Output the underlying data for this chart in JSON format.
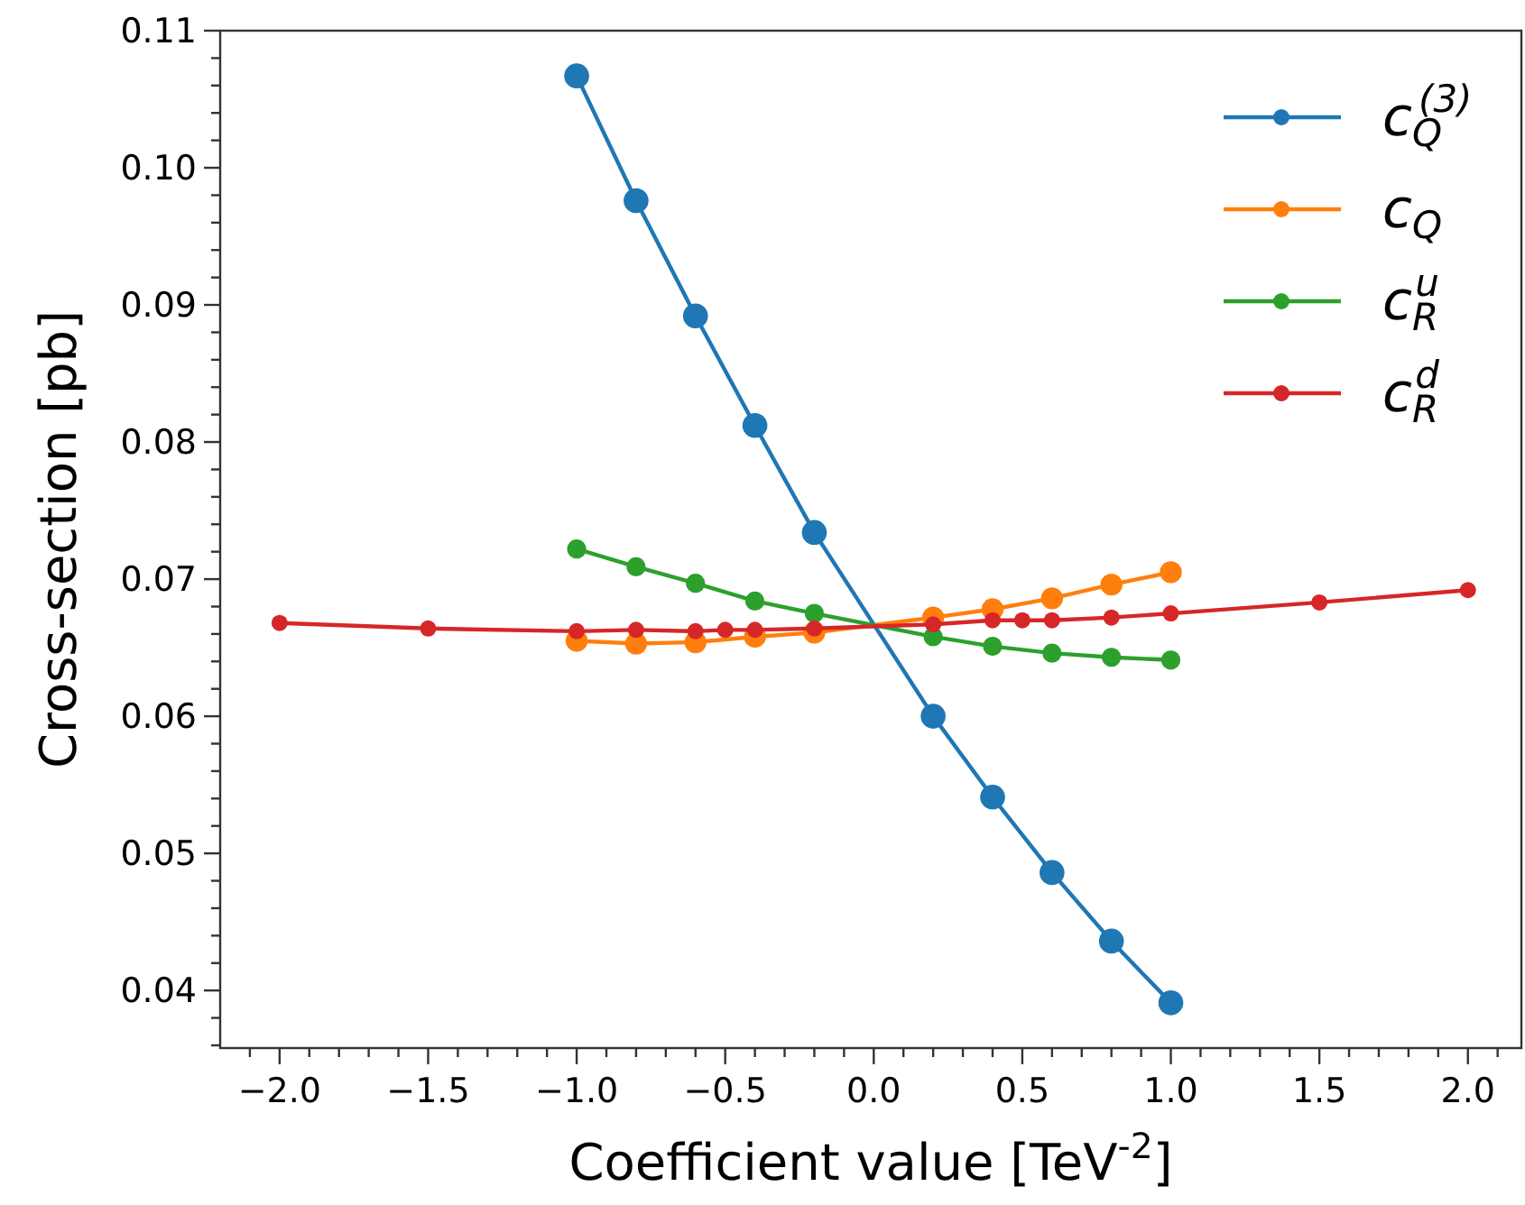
{
  "chart_data": {
    "type": "line",
    "xlabel": "Coefficient value [TeV$^{-2}$]",
    "ylabel": "Cross-section [pb]",
    "marker": "circle",
    "line_style": "solid",
    "grid": false,
    "legend": "top right",
    "xlim": [
      -2.2,
      2.18
    ],
    "ylim": [
      0.0358,
      0.11
    ],
    "xticks": [
      {
        "value": -2.1,
        "label": null
      },
      {
        "value": -2.0,
        "label": "−2.0"
      },
      {
        "value": -1.9,
        "label": null
      },
      {
        "value": -1.8,
        "label": null
      },
      {
        "value": -1.7,
        "label": null
      },
      {
        "value": -1.6,
        "label": null
      },
      {
        "value": -1.5,
        "label": "−1.5"
      },
      {
        "value": -1.4,
        "label": null
      },
      {
        "value": -1.3,
        "label": null
      },
      {
        "value": -1.2,
        "label": null
      },
      {
        "value": -1.1,
        "label": null
      },
      {
        "value": -1.0,
        "label": "−1.0"
      },
      {
        "value": -0.9,
        "label": null
      },
      {
        "value": -0.8,
        "label": null
      },
      {
        "value": -0.7,
        "label": null
      },
      {
        "value": -0.6,
        "label": null
      },
      {
        "value": -0.5,
        "label": "−0.5"
      },
      {
        "value": -0.4,
        "label": null
      },
      {
        "value": -0.3,
        "label": null
      },
      {
        "value": -0.2,
        "label": null
      },
      {
        "value": -0.1,
        "label": null
      },
      {
        "value": 0,
        "label": "0.0"
      },
      {
        "value": 0.1,
        "label": null
      },
      {
        "value": 0.2,
        "label": null
      },
      {
        "value": 0.3,
        "label": null
      },
      {
        "value": 0.4,
        "label": null
      },
      {
        "value": 0.5,
        "label": "0.5"
      },
      {
        "value": 0.6,
        "label": null
      },
      {
        "value": 0.7,
        "label": null
      },
      {
        "value": 0.8,
        "label": null
      },
      {
        "value": 0.9,
        "label": null
      },
      {
        "value": 1.0,
        "label": "1.0"
      },
      {
        "value": 1.1,
        "label": null
      },
      {
        "value": 1.2,
        "label": null
      },
      {
        "value": 1.3,
        "label": null
      },
      {
        "value": 1.4,
        "label": null
      },
      {
        "value": 1.5,
        "label": "1.5"
      },
      {
        "value": 1.6,
        "label": null
      },
      {
        "value": 1.7,
        "label": null
      },
      {
        "value": 1.8,
        "label": null
      },
      {
        "value": 1.9,
        "label": null
      },
      {
        "value": 2.0,
        "label": "2.0"
      },
      {
        "value": 2.1,
        "label": null
      }
    ],
    "yticks": [
      {
        "value": 0.036,
        "label": null
      },
      {
        "value": 0.038,
        "label": null
      },
      {
        "value": 0.04,
        "label": "0.04"
      },
      {
        "value": 0.042,
        "label": null
      },
      {
        "value": 0.044,
        "label": null
      },
      {
        "value": 0.046,
        "label": null
      },
      {
        "value": 0.048,
        "label": null
      },
      {
        "value": 0.05,
        "label": "0.05"
      },
      {
        "value": 0.052,
        "label": null
      },
      {
        "value": 0.054,
        "label": null
      },
      {
        "value": 0.056,
        "label": null
      },
      {
        "value": 0.058,
        "label": null
      },
      {
        "value": 0.06,
        "label": "0.06"
      },
      {
        "value": 0.062,
        "label": null
      },
      {
        "value": 0.064,
        "label": null
      },
      {
        "value": 0.066,
        "label": null
      },
      {
        "value": 0.068,
        "label": null
      },
      {
        "value": 0.07,
        "label": "0.07"
      },
      {
        "value": 0.072,
        "label": null
      },
      {
        "value": 0.074,
        "label": null
      },
      {
        "value": 0.076,
        "label": null
      },
      {
        "value": 0.078,
        "label": null
      },
      {
        "value": 0.08,
        "label": "0.08"
      },
      {
        "value": 0.082,
        "label": null
      },
      {
        "value": 0.084,
        "label": null
      },
      {
        "value": 0.086,
        "label": null
      },
      {
        "value": 0.088,
        "label": null
      },
      {
        "value": 0.09,
        "label": "0.09"
      },
      {
        "value": 0.092,
        "label": null
      },
      {
        "value": 0.094,
        "label": null
      },
      {
        "value": 0.096,
        "label": null
      },
      {
        "value": 0.098,
        "label": null
      },
      {
        "value": 0.1,
        "label": "0.10"
      },
      {
        "value": 0.102,
        "label": null
      },
      {
        "value": 0.104,
        "label": null
      },
      {
        "value": 0.106,
        "label": null
      },
      {
        "value": 0.108,
        "label": null
      },
      {
        "value": 0.11,
        "label": "0.11"
      }
    ],
    "series": [
      {
        "name": "c$_{Q}$$^{(3)}$",
        "color": "#1f77b4",
        "x": [
          -1,
          -0.8,
          -0.6,
          -0.4,
          -0.2,
          0.2,
          0.4,
          0.6,
          0.8,
          1
        ],
        "values": [
          0.1067,
          0.0976,
          0.0892,
          0.0812,
          0.0734,
          0.06,
          0.0541,
          0.0486,
          0.0436,
          0.0391
        ]
      },
      {
        "name": "c$_{Q}$",
        "color": "#ff7f0e",
        "x": [
          -1,
          -0.8,
          -0.6,
          -0.4,
          -0.2,
          0.2,
          0.4,
          0.6,
          0.8,
          1
        ],
        "values": [
          0.0655,
          0.0653,
          0.0654,
          0.0658,
          0.0661,
          0.0672,
          0.0678,
          0.0686,
          0.0696,
          0.0705
        ]
      },
      {
        "name": "c$_{R}$$^{u}$",
        "color": "#2ca02c",
        "x": [
          -1,
          -0.8,
          -0.6,
          -0.4,
          -0.2,
          0.2,
          0.4,
          0.6,
          0.8,
          1
        ],
        "values": [
          0.0722,
          0.0709,
          0.0697,
          0.0684,
          0.0675,
          0.0658,
          0.0651,
          0.0646,
          0.0643,
          0.0641
        ]
      },
      {
        "name": "c$_{R}$$^{d}$",
        "color": "#d62728",
        "x": [
          -2,
          -1.5,
          -1,
          -0.8,
          -0.6,
          -0.5,
          -0.4,
          -0.2,
          0.2,
          0.4,
          0.5,
          0.6,
          0.8,
          1,
          1.5,
          2
        ],
        "values": [
          0.0668,
          0.0664,
          0.0662,
          0.0663,
          0.0662,
          0.0663,
          0.0663,
          0.0664,
          0.0667,
          0.067,
          0.067,
          0.067,
          0.0672,
          0.0675,
          0.0683,
          0.0692
        ]
      }
    ]
  }
}
